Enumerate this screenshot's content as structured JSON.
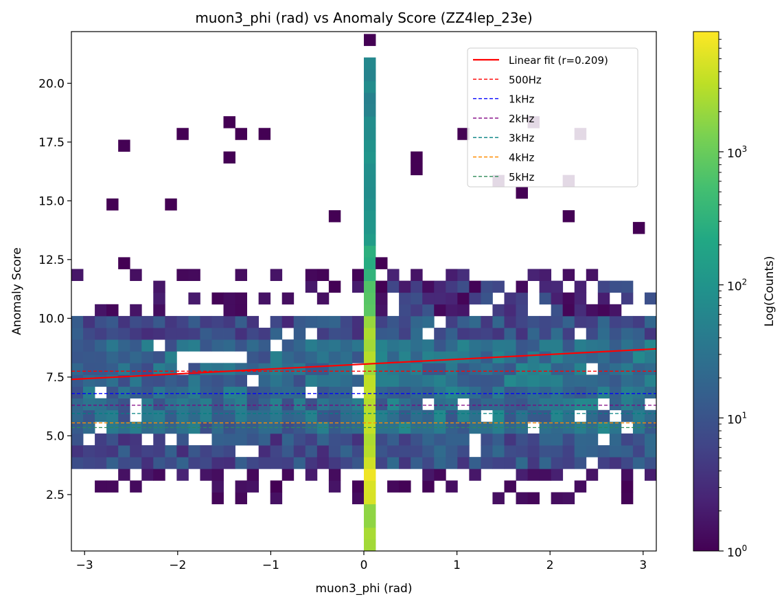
{
  "chart_data": {
    "type": "heatmap",
    "title": "muon3_phi (rad) vs Anomaly Score (ZZ4lep_23e)",
    "xlabel": "muon3_phi (rad)",
    "ylabel": "Anomaly Score",
    "xlim": [
      -3.1416,
      3.1416
    ],
    "ylim": [
      0.1,
      22.2
    ],
    "x_ticks": [
      -3,
      -2,
      -1,
      0,
      1,
      2,
      3
    ],
    "x_tick_labels": [
      "−3",
      "−2",
      "−1",
      "0",
      "1",
      "2",
      "3"
    ],
    "y_ticks": [
      2.5,
      5.0,
      7.5,
      10.0,
      12.5,
      15.0,
      17.5,
      20.0
    ],
    "y_tick_labels": [
      "2.5",
      "5.0",
      "7.5",
      "10.0",
      "12.5",
      "15.0",
      "17.5",
      "20.0"
    ],
    "colorbar": {
      "label": "Log(Counts)",
      "scale": "log",
      "range": [
        1,
        8000
      ],
      "tick_labels": [
        {
          "value": 1,
          "base": "10",
          "exp": "0"
        },
        {
          "value": 10,
          "base": "10",
          "exp": "1"
        },
        {
          "value": 100,
          "base": "10",
          "exp": "2"
        },
        {
          "value": 1000,
          "base": "10",
          "exp": "3"
        }
      ]
    },
    "fit_line": {
      "label": "Linear fit (r=0.209)",
      "color": "#ff0000",
      "x": [
        -3.1416,
        3.1416
      ],
      "y": [
        7.4,
        8.7
      ]
    },
    "thresholds": [
      {
        "label": "500Hz",
        "y": 7.75,
        "color": "#ff0000"
      },
      {
        "label": "1kHz",
        "y": 6.8,
        "color": "#0000ff"
      },
      {
        "label": "2kHz",
        "y": 6.3,
        "color": "#800080"
      },
      {
        "label": "3kHz",
        "y": 5.95,
        "color": "#008080"
      },
      {
        "label": "4kHz",
        "y": 5.55,
        "color": "#ff8c00"
      },
      {
        "label": "5kHz",
        "y": 5.35,
        "color": "#2e8b57"
      }
    ],
    "legend_position": "top-right"
  }
}
